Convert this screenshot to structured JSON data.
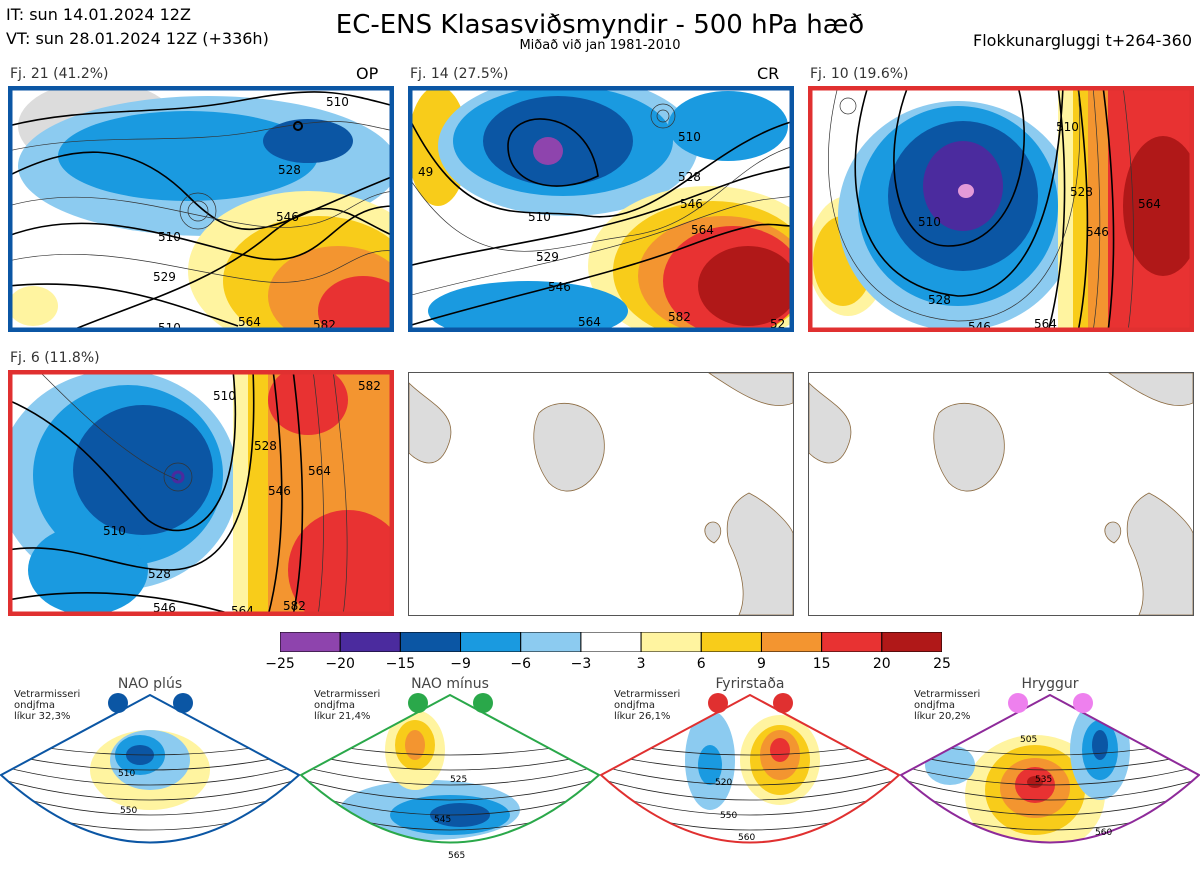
{
  "header": {
    "it": "IT: sun 14.01.2024 12Z",
    "vt": "VT: sun 28.01.2024 12Z  (+336h)",
    "title": "EC-ENS Klasasviðsmyndir - 500 hPa hæð",
    "subtitle": "Miðað við jan 1981-2010",
    "window": "Flokkunargluggi t+264-360"
  },
  "panels": [
    {
      "label": "Fj. 21 (41.2%)",
      "tag": "OP",
      "frame_color": "#0b56a4",
      "contour_labels": [
        "510",
        "528",
        "546",
        "564",
        "582",
        "510",
        "529",
        "510"
      ]
    },
    {
      "label": "Fj. 14 (27.5%)",
      "tag": "CR",
      "frame_color": "#0b56a4",
      "contour_labels": [
        "510",
        "528",
        "546",
        "564",
        "510",
        "529",
        "546",
        "582",
        "564",
        "52",
        "49"
      ]
    },
    {
      "label": "Fj. 10 (19.6%)",
      "tag": "",
      "frame_color": "#e03030",
      "contour_labels": [
        "510",
        "528",
        "546",
        "564",
        "510",
        "528",
        "546",
        "564"
      ]
    },
    {
      "label": "Fj. 6 (11.8%)",
      "tag": "",
      "frame_color": "#e03030",
      "contour_labels": [
        "510",
        "528",
        "546",
        "564",
        "582",
        "510",
        "528",
        "546",
        "564",
        "582"
      ]
    }
  ],
  "colorbar": {
    "ticks": [
      "−25",
      "−20",
      "−15",
      "−9",
      "−6",
      "−3",
      "3",
      "6",
      "9",
      "15",
      "20",
      "25"
    ],
    "colors": [
      "#8e44ad",
      "#4b2b9e",
      "#0b56a4",
      "#1a9ae0",
      "#8ccbf0",
      "#ffffff",
      "#fff4a0",
      "#f8cc1a",
      "#f39530",
      "#e83232",
      "#b01818"
    ]
  },
  "regimes": [
    {
      "name": "NAO plús",
      "season": "Vetrarmisseri",
      "metric": "ondjfma",
      "prob": "líkur 32,3%",
      "color": "#0b56a4",
      "dot": "#0b56a4",
      "labels": [
        "510",
        "550"
      ]
    },
    {
      "name": "NAO mínus",
      "season": "Vetrarmisseri",
      "metric": "ondjfma",
      "prob": "líkur 21,4%",
      "color": "#2aa84a",
      "dot": "#2aa84a",
      "labels": [
        "525",
        "545",
        "565"
      ]
    },
    {
      "name": "Fyrirstaða",
      "season": "Vetrarmisseri",
      "metric": "ondjfma",
      "prob": "líkur 26,1%",
      "color": "#e03030",
      "dot": "#e03030",
      "labels": [
        "520",
        "550",
        "560"
      ]
    },
    {
      "name": "Hryggur",
      "season": "Vetrarmisseri",
      "metric": "ondjfma",
      "prob": "líkur 20,2%",
      "color": "#8e2a9a",
      "dot": "#ee80ee",
      "labels": [
        "505",
        "535",
        "560"
      ]
    }
  ]
}
